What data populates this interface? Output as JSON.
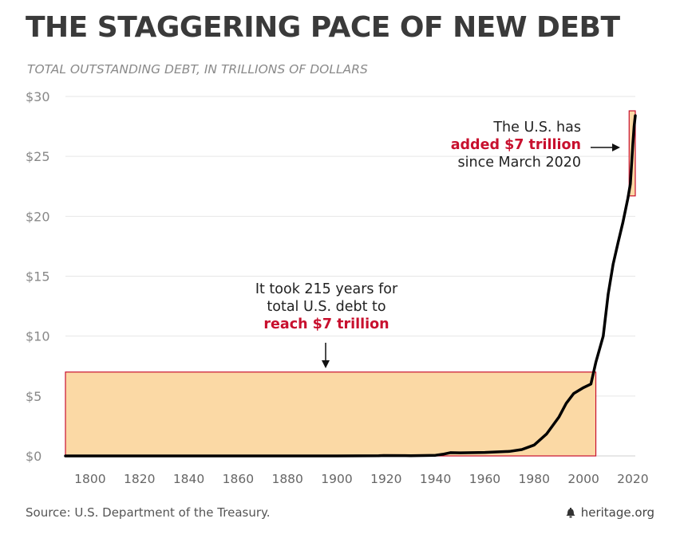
{
  "header": {
    "title": "THE STAGGERING PACE OF NEW DEBT",
    "subtitle": "TOTAL OUTSTANDING DEBT, IN TRILLIONS OF DOLLARS"
  },
  "footer": {
    "source": "Source: U.S. Department of the Treasury.",
    "credit": "heritage.org"
  },
  "annotations": {
    "left": {
      "line1": "It took 215 years for",
      "line2": "total U.S. debt to",
      "line3": "reach $7 trillion"
    },
    "right": {
      "line1": "The U.S. has",
      "line2": "added $7 trillion",
      "line3": "since March 2020"
    }
  },
  "colors": {
    "highlight_fill": "#fbd9a5",
    "highlight_stroke": "#c8102e",
    "line": "#000000",
    "accent_text": "#c8102e"
  },
  "chart_data": {
    "type": "line",
    "title": "THE STAGGERING PACE OF NEW DEBT",
    "subtitle": "TOTAL OUTSTANDING DEBT, IN TRILLIONS OF DOLLARS",
    "xlim": [
      1790,
      2021
    ],
    "ylim": [
      0,
      30
    ],
    "yticks": [
      0,
      5,
      10,
      15,
      20,
      25,
      30
    ],
    "ytick_labels": [
      "$0",
      "$5",
      "$10",
      "$15",
      "$20",
      "$25",
      "$30"
    ],
    "xticks": [
      1800,
      1820,
      1840,
      1860,
      1880,
      1900,
      1920,
      1940,
      1960,
      1980,
      2000,
      2020
    ],
    "xtick_labels": [
      "1800",
      "1820",
      "1840",
      "1860",
      "1880",
      "1900",
      "1920",
      "1940",
      "1960",
      "1980",
      "2000",
      "2020"
    ],
    "grid": true,
    "series": [
      {
        "x": [
          1790,
          1800,
          1820,
          1840,
          1860,
          1880,
          1900,
          1917,
          1919,
          1930,
          1940,
          1943,
          1946,
          1950,
          1960,
          1970,
          1975,
          1980,
          1985,
          1990,
          1993,
          1996,
          2000,
          2003,
          2005,
          2008,
          2010,
          2012,
          2014,
          2016,
          2018,
          2019,
          2020,
          2020.5,
          2021
        ],
        "y": [
          0,
          0,
          0,
          0,
          0,
          0,
          0,
          0.01,
          0.03,
          0.02,
          0.05,
          0.14,
          0.27,
          0.26,
          0.29,
          0.38,
          0.53,
          0.91,
          1.82,
          3.23,
          4.4,
          5.2,
          5.7,
          6.0,
          7.8,
          10.0,
          13.5,
          16.0,
          17.8,
          19.5,
          21.5,
          22.7,
          26.0,
          27.5,
          28.4
        ]
      }
    ],
    "highlights": [
      {
        "x": [
          1790,
          2005
        ],
        "y": [
          0,
          7.0
        ]
      },
      {
        "x": [
          2018.5,
          2021
        ],
        "y": [
          21.7,
          28.8
        ]
      }
    ]
  }
}
